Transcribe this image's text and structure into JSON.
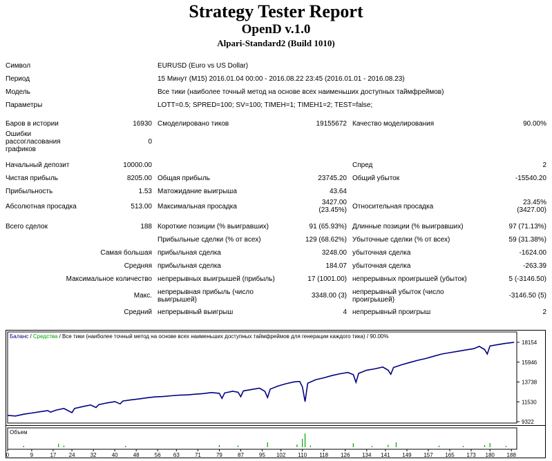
{
  "header": {
    "title": "Strategy Tester Report",
    "subtitle": "OpenD v.1.0",
    "build": "Alpari-Standard2 (Build 1010)"
  },
  "info": {
    "symbol_label": "Символ",
    "symbol_value": "EURUSD (Euro vs US Dollar)",
    "period_label": "Период",
    "period_value": "15 Минут (M15) 2016.01.04 00:00 - 2016.08.22 23:45 (2016.01.01 - 2016.08.23)",
    "model_label": "Модель",
    "model_value": "Все тики (наиболее точный метод на основе всех наименьших доступных таймфреймов)",
    "params_label": "Параметры",
    "params_value": "LOTT=0.5; SPRED=100; SV=100; TIMEH=1; TIMEH1=2; TEST=false;"
  },
  "stats": {
    "bars_label": "Баров в истории",
    "bars_value": "16930",
    "ticks_label": "Смоделировано тиков",
    "ticks_value": "19155672",
    "quality_label": "Качество моделирования",
    "quality_value": "90.00%",
    "errors_label": "Ошибки рассогласования графиков",
    "errors_value": "0",
    "deposit_label": "Начальный депозит",
    "deposit_value": "10000.00",
    "spread_label": "Спред",
    "spread_value": "2",
    "net_label": "Чистая прибыль",
    "net_value": "8205.00",
    "gross_profit_label": "Общая прибыль",
    "gross_profit_value": "23745.20",
    "gross_loss_label": "Общий убыток",
    "gross_loss_value": "-15540.20",
    "pf_label": "Прибыльность",
    "pf_value": "1.53",
    "expected_label": "Матожидание выигрыша",
    "expected_value": "43.64",
    "abs_dd_label": "Абсолютная просадка",
    "abs_dd_value": "513.00",
    "max_dd_label": "Максимальная просадка",
    "max_dd_value1": "3427.00",
    "max_dd_value2": "(23.45%)",
    "rel_dd_label": "Относительная просадка",
    "rel_dd_value1": "23.45%",
    "rel_dd_value2": "(3427.00)",
    "total_label": "Всего сделок",
    "total_value": "188",
    "short_label": "Короткие позиции (% выигравших)",
    "short_value": "91 (65.93%)",
    "long_label": "Длинные позиции (% выигравших)",
    "long_value": "97 (71.13%)",
    "win_trades_label": "Прибыльные сделки (% от всех)",
    "win_trades_value": "129 (68.62%)",
    "loss_trades_label": "Убыточные сделки (% от всех)",
    "loss_trades_value": "59 (31.38%)",
    "largest_label": "Самая большая",
    "largest_win_label": "прибыльная сделка",
    "largest_win_value": "3248.00",
    "largest_loss_label": "убыточная сделка",
    "largest_loss_value": "-1624.00",
    "avg_label": "Средняя",
    "avg_win_label": "прибыльная сделка",
    "avg_win_value": "184.07",
    "avg_loss_label": "убыточная сделка",
    "avg_loss_value": "-263.39",
    "maxcount_label": "Максимальное количество",
    "maxcount_win_label": "непрерывных выигрышей (прибыль)",
    "maxcount_win_value": "17 (1001.00)",
    "maxcount_loss_label": "непрерывных проигрышей (убыток)",
    "maxcount_loss_value": "5 (-3146.50)",
    "max_label": "Макс.",
    "max_win_label": "непрерывная прибыль (число выигрышей)",
    "max_win_value": "3348.00 (3)",
    "max_loss_label": "непрерывный убыток (число проигрышей)",
    "max_loss_value": "-3146.50 (5)",
    "avgcons_label": "Средний",
    "avgcons_win_label": "непрерывный выигрыш",
    "avgcons_win_value": "4",
    "avgcons_loss_label": "непрерывный проигрыш",
    "avgcons_loss_value": "2"
  },
  "chart_data": {
    "type": "line",
    "legend": {
      "balance": "Баланс",
      "sep1": " / ",
      "equity": "Средства",
      "sep2": " / ",
      "model": "Все тики (наиболее точный метод на основе всех наименьших доступных таймфреймов для генерации каждого тика)",
      "sep3": " / ",
      "quality": "90.00%"
    },
    "volume_label": "Объем",
    "ylim": [
      9322,
      18154
    ],
    "xlim": [
      0,
      190
    ],
    "yticks": [
      18154,
      15946,
      13738,
      11530,
      9322
    ],
    "xticks": [
      0,
      9,
      17,
      24,
      32,
      40,
      48,
      56,
      63,
      71,
      79,
      87,
      95,
      102,
      110,
      118,
      126,
      134,
      141,
      149,
      157,
      165,
      173,
      180,
      188
    ],
    "colors": {
      "balance": "#000080",
      "equity": "#00a000",
      "volume": "#00a000"
    },
    "balance": [
      [
        0,
        10020
      ],
      [
        3,
        9950
      ],
      [
        6,
        10150
      ],
      [
        9,
        10280
      ],
      [
        12,
        10420
      ],
      [
        15,
        10560
      ],
      [
        16,
        10380
      ],
      [
        18,
        10600
      ],
      [
        21,
        10790
      ],
      [
        24,
        10330
      ],
      [
        25,
        10800
      ],
      [
        28,
        11000
      ],
      [
        31,
        11180
      ],
      [
        33,
        10900
      ],
      [
        34,
        11220
      ],
      [
        37,
        11400
      ],
      [
        40,
        11560
      ],
      [
        42,
        11300
      ],
      [
        43,
        11620
      ],
      [
        46,
        11750
      ],
      [
        49,
        11850
      ],
      [
        52,
        11980
      ],
      [
        55,
        12080
      ],
      [
        58,
        12120
      ],
      [
        61,
        12200
      ],
      [
        64,
        12270
      ],
      [
        67,
        12300
      ],
      [
        70,
        12380
      ],
      [
        73,
        12450
      ],
      [
        76,
        12560
      ],
      [
        79,
        12480
      ],
      [
        80,
        11920
      ],
      [
        81,
        12520
      ],
      [
        84,
        12700
      ],
      [
        86,
        12600
      ],
      [
        87,
        12100
      ],
      [
        88,
        12750
      ],
      [
        91,
        12900
      ],
      [
        94,
        13050
      ],
      [
        96,
        12700
      ],
      [
        97,
        12000
      ],
      [
        98,
        12950
      ],
      [
        101,
        13300
      ],
      [
        104,
        13550
      ],
      [
        107,
        13750
      ],
      [
        109,
        13800
      ],
      [
        110,
        13200
      ],
      [
        111,
        11550
      ],
      [
        112,
        13600
      ],
      [
        115,
        14000
      ],
      [
        118,
        14200
      ],
      [
        121,
        14450
      ],
      [
        124,
        14650
      ],
      [
        127,
        14800
      ],
      [
        129,
        14550
      ],
      [
        130,
        13700
      ],
      [
        131,
        14700
      ],
      [
        134,
        15050
      ],
      [
        137,
        15200
      ],
      [
        140,
        15400
      ],
      [
        142,
        15050
      ],
      [
        143,
        14600
      ],
      [
        144,
        15350
      ],
      [
        147,
        15650
      ],
      [
        150,
        15900
      ],
      [
        153,
        16150
      ],
      [
        156,
        16350
      ],
      [
        159,
        16600
      ],
      [
        162,
        16850
      ],
      [
        165,
        17000
      ],
      [
        168,
        17150
      ],
      [
        171,
        17300
      ],
      [
        174,
        17450
      ],
      [
        176,
        17700
      ],
      [
        178,
        17350
      ],
      [
        179,
        16850
      ],
      [
        180,
        17750
      ],
      [
        183,
        17900
      ],
      [
        186,
        18050
      ],
      [
        189,
        18150
      ]
    ],
    "volume": [
      [
        6,
        0.1
      ],
      [
        19,
        0.25
      ],
      [
        21,
        0.12
      ],
      [
        44,
        0.1
      ],
      [
        79,
        0.15
      ],
      [
        86,
        0.12
      ],
      [
        97,
        0.35
      ],
      [
        108,
        0.2
      ],
      [
        110,
        0.6
      ],
      [
        111,
        1.0
      ],
      [
        113,
        0.12
      ],
      [
        129,
        0.28
      ],
      [
        136,
        0.1
      ],
      [
        142,
        0.18
      ],
      [
        145,
        0.35
      ],
      [
        161,
        0.12
      ],
      [
        170,
        0.1
      ],
      [
        178,
        0.15
      ],
      [
        180,
        0.3
      ],
      [
        186,
        0.1
      ]
    ]
  }
}
